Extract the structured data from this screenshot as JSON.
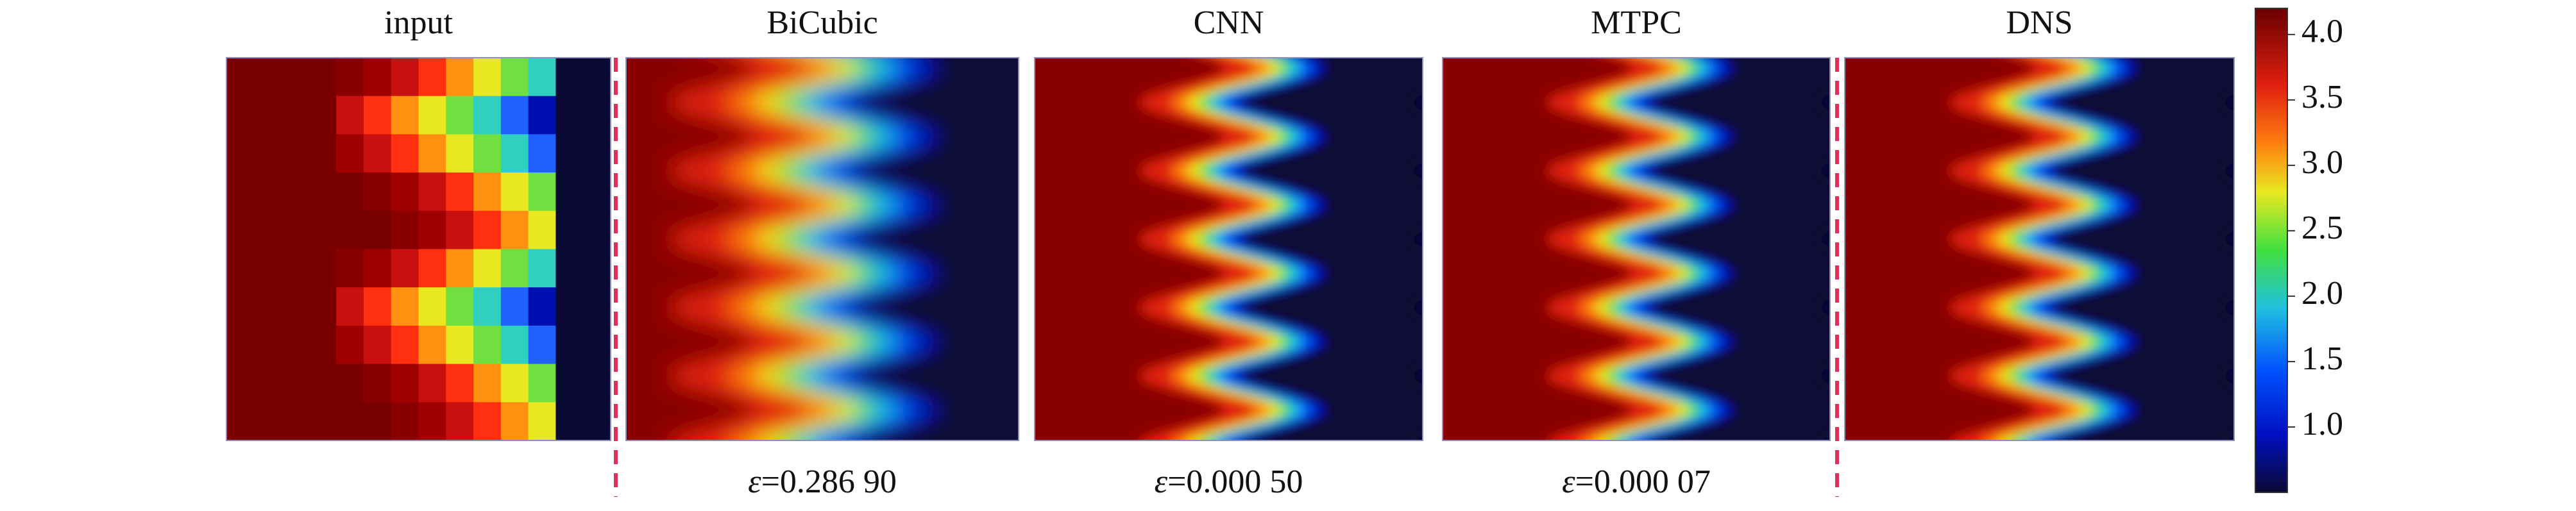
{
  "panels": [
    {
      "title": "input"
    },
    {
      "title": "BiCubic",
      "error": {
        "symbol": "ε",
        "text": "=0.286 90"
      }
    },
    {
      "title": "CNN",
      "error": {
        "symbol": "ε",
        "text": "=0.000 50"
      }
    },
    {
      "title": "MTPC",
      "error": {
        "symbol": "ε",
        "text": "=0.000 07"
      }
    },
    {
      "title": "DNS"
    }
  ],
  "colorbar": {
    "lim": [
      0.5,
      4.2
    ],
    "ticks": [
      {
        "value": 1,
        "label": "1.0"
      },
      {
        "value": 1.5,
        "label": "1.5"
      },
      {
        "value": 2,
        "label": "2.0"
      },
      {
        "value": 2.5,
        "label": "2.5"
      },
      {
        "value": 3,
        "label": "3.0"
      },
      {
        "value": 3.5,
        "label": "3.5"
      },
      {
        "value": 4,
        "label": "4.0"
      }
    ]
  }
}
